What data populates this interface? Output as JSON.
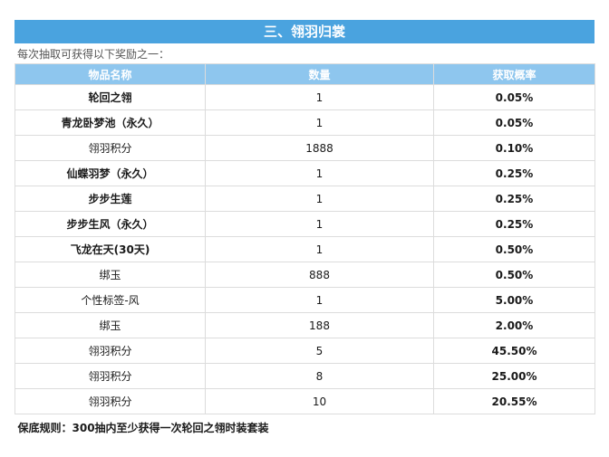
{
  "title": "三、翎羽归裳",
  "subtitle": "每次抽取可获得以下奖励之一：",
  "headers": [
    "物品名称",
    "数量",
    "获取概率"
  ],
  "rows": [
    {
      "name": "轮回之翎",
      "qty": "1",
      "prob": "0.05%",
      "name_bold": true
    },
    {
      "name": "青龙卧梦池（永久）",
      "qty": "1",
      "prob": "0.05%",
      "name_bold": true
    },
    {
      "name": "翎羽积分",
      "qty": "1888",
      "prob": "0.10%",
      "name_bold": false
    },
    {
      "name": "仙蝶羽梦（永久）",
      "qty": "1",
      "prob": "0.25%",
      "name_bold": true
    },
    {
      "name": "步步生莲",
      "qty": "1",
      "prob": "0.25%",
      "name_bold": true
    },
    {
      "name": "步步生风（永久）",
      "qty": "1",
      "prob": "0.25%",
      "name_bold": true
    },
    {
      "name": "飞龙在天(30天)",
      "qty": "1",
      "prob": "0.50%",
      "name_bold": true
    },
    {
      "name": "绑玉",
      "qty": "888",
      "prob": "0.50%",
      "name_bold": false
    },
    {
      "name": "个性标签-风",
      "qty": "1",
      "prob": "5.00%",
      "name_bold": false
    },
    {
      "name": "绑玉",
      "qty": "188",
      "prob": "2.00%",
      "name_bold": false
    },
    {
      "name": "翎羽积分",
      "qty": "5",
      "prob": "45.50%",
      "name_bold": false
    },
    {
      "name": "翎羽积分",
      "qty": "8",
      "prob": "25.00%",
      "name_bold": false
    },
    {
      "name": "翎羽积分",
      "qty": "10",
      "prob": "20.55%",
      "name_bold": false
    }
  ],
  "footer": "保底规则：300抽内至少获得一次轮回之翎时装套装",
  "colors": {
    "title_bg": "#4aa3df",
    "header_bg": "#8ec6ee",
    "border": "#dcdcdc"
  }
}
